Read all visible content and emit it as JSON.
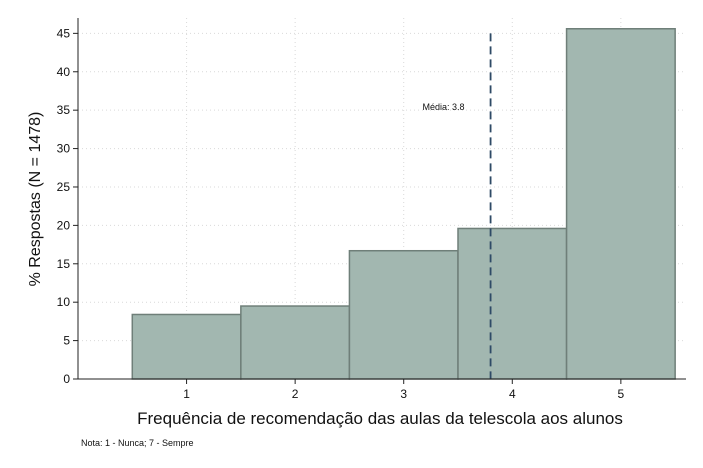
{
  "chart_data": {
    "type": "bar",
    "categories": [
      "1",
      "2",
      "3",
      "4",
      "5"
    ],
    "values": [
      8.4,
      9.5,
      16.7,
      19.6,
      45.6
    ],
    "title": "",
    "xlabel": "Frequência de recomendação das aulas da telescola aos alunos",
    "ylabel": "% Respostas (N = 1478)",
    "ylim": [
      0,
      47
    ],
    "yticks": [
      0,
      5,
      10,
      15,
      20,
      25,
      30,
      35,
      40,
      45
    ],
    "xlim": [
      0,
      5.6
    ],
    "grid": true,
    "bar_color": "#a2b7b0",
    "bar_edge_color": "#6f7f79",
    "mean": {
      "value": 3.8,
      "label": "Média: 3.8",
      "line_color": "#2e4a66"
    },
    "note": "Nota: 1 - Nunca; 7 - Sempre"
  }
}
